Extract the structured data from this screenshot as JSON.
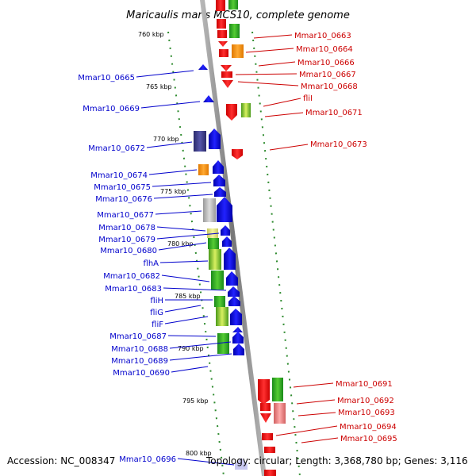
{
  "title": "Maricaulis maris MCS10, complete genome",
  "footer": {
    "accession": "Accession: NC_008347",
    "topology": "Topology: circular; Length: 3,368,780 bp; Genes: 3,116"
  },
  "kbp_labels": [
    "760 kbp",
    "765 kbp",
    "770 kbp",
    "775 kbp",
    "780 kbp",
    "785 kbp",
    "790 kbp",
    "795 kbp",
    "800 kbp"
  ],
  "left_genes": [
    "Mmar10_0665",
    "Mmar10_0669",
    "Mmar10_0672",
    "Mmar10_0674",
    "Mmar10_0675",
    "Mmar10_0676",
    "Mmar10_0677",
    "Mmar10_0678",
    "Mmar10_0679",
    "Mmar10_0680",
    "flhA",
    "Mmar10_0682",
    "Mmar10_0683",
    "fliH",
    "fliG",
    "fliF",
    "Mmar10_0687",
    "Mmar10_0688",
    "Mmar10_0689",
    "Mmar10_0690",
    "Mmar10_0696"
  ],
  "right_genes": [
    "Mmar10_0663",
    "Mmar10_0664",
    "Mmar10_0666",
    "Mmar10_0667",
    "Mmar10_0668",
    "fliI",
    "Mmar10_0671",
    "Mmar10_0673",
    "Mmar10_0691",
    "Mmar10_0692",
    "Mmar10_0693",
    "Mmar10_0694",
    "Mmar10_0695"
  ],
  "colors": {
    "reverse_strand": "#ff0000",
    "forward_strand": "#0000ff",
    "left_label": "#0000cc",
    "right_label": "#cc0000",
    "backbone": "#888888",
    "gc_dots": "#2e8b2e"
  }
}
